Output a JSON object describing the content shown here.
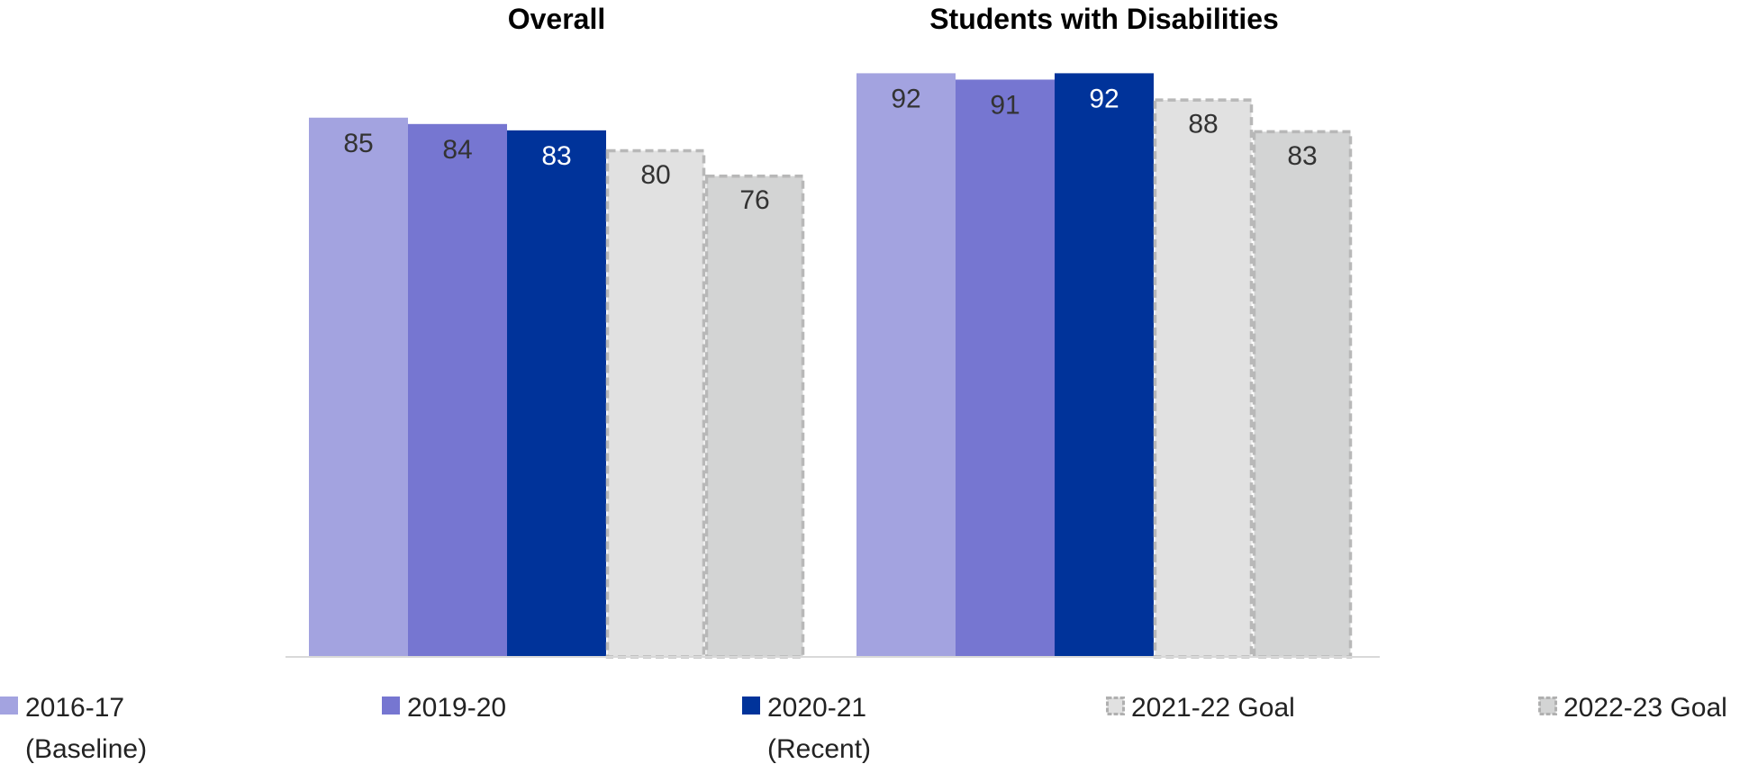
{
  "chart_data": {
    "type": "bar",
    "categories": [
      "Overall",
      "Students with Disabilities"
    ],
    "series": [
      {
        "name": "2016-17 (Baseline)",
        "legend_lines": [
          "2016-17",
          "(Baseline)"
        ],
        "values": [
          85,
          92
        ],
        "color": "#a3a3e0",
        "style": "solid",
        "label_color": "#333333"
      },
      {
        "name": "2019-20",
        "legend_lines": [
          "2019-20"
        ],
        "values": [
          84,
          91
        ],
        "color": "#7676d1",
        "style": "solid",
        "label_color": "#333333"
      },
      {
        "name": "2020-21 (Recent)",
        "legend_lines": [
          "2020-21",
          "(Recent)"
        ],
        "values": [
          83,
          92
        ],
        "color": "#00339a",
        "style": "solid",
        "label_color": "#ffffff"
      },
      {
        "name": "2021-22 Goal",
        "legend_lines": [
          "2021-22 Goal"
        ],
        "values": [
          80,
          88
        ],
        "color": "#e1e1e1",
        "style": "dashed",
        "label_color": "#333333"
      },
      {
        "name": "2022-23 Goal",
        "legend_lines": [
          "2022-23 Goal"
        ],
        "values": [
          76,
          83
        ],
        "color": "#d3d4d4",
        "style": "dashed",
        "label_color": "#333333"
      }
    ],
    "data_labels": true,
    "yaxis_visible": false,
    "grid": false,
    "legend_position": "bottom"
  }
}
